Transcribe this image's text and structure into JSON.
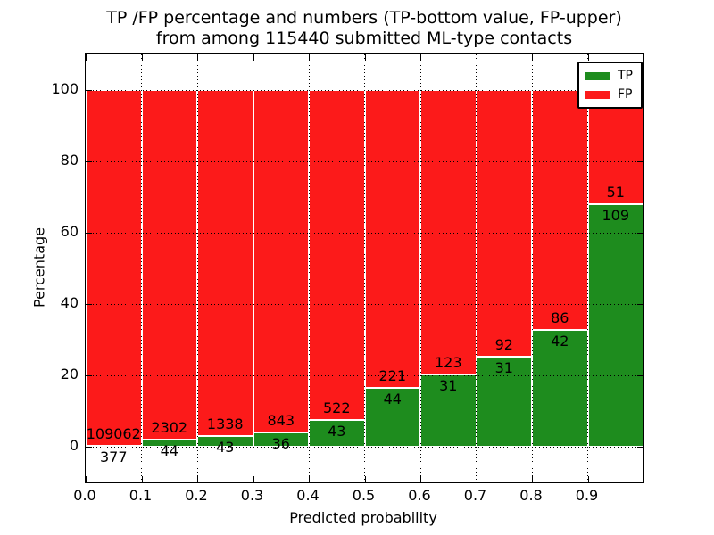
{
  "figure": {
    "title_line1": "TP /FP percentage and numbers (TP-bottom value, FP-upper)",
    "title_line2": "from among 115440 submitted ML-type contacts"
  },
  "axes": {
    "xlabel": "Predicted probability",
    "ylabel": "Percentage",
    "x_tick_labels": [
      "0.0",
      "0.1",
      "0.2",
      "0.3",
      "0.4",
      "0.5",
      "0.6",
      "0.7",
      "0.8",
      "0.9"
    ],
    "y_tick_labels": [
      "0",
      "20",
      "40",
      "60",
      "80",
      "100"
    ],
    "y_tick_values": [
      0,
      20,
      40,
      60,
      80,
      100
    ]
  },
  "legend": {
    "entries": [
      {
        "label": "TP",
        "color": "#1e8c1e"
      },
      {
        "label": "FP",
        "color": "#fc1a1a"
      }
    ]
  },
  "colors": {
    "tp_green": "#1e8c1e",
    "fp_red": "#fc1a1a",
    "grid": "#000000",
    "bar_edge": "#ffffff",
    "background": "#ffffff"
  },
  "chart_data": {
    "type": "bar",
    "stacked": true,
    "normalized": "percent-of-bin",
    "title": "TP /FP percentage and numbers (TP-bottom value, FP-upper)\nfrom among 115440 submitted ML-type contacts",
    "xlabel": "Predicted probability",
    "ylabel": "Percentage",
    "xlim": [
      0.0,
      1.0
    ],
    "ylim": [
      -10,
      110
    ],
    "grid": "dotted",
    "legend_position": "upper-right",
    "total_contacts": 115440,
    "bin_width": 0.1,
    "bin_starts": [
      0.0,
      0.1,
      0.2,
      0.3,
      0.4,
      0.5,
      0.6,
      0.7,
      0.8,
      0.9
    ],
    "series": [
      {
        "name": "TP",
        "color": "#1e8c1e",
        "counts": [
          377,
          44,
          43,
          36,
          43,
          44,
          31,
          31,
          42,
          109
        ]
      },
      {
        "name": "FP",
        "color": "#fc1a1a",
        "counts": [
          109062,
          2302,
          1338,
          843,
          522,
          221,
          123,
          92,
          86,
          51
        ]
      }
    ],
    "bar_value_labels": {
      "fp_above_boundary": [
        109062,
        2302,
        1338,
        843,
        522,
        221,
        123,
        92,
        86,
        51
      ],
      "tp_below_boundary": [
        377,
        44,
        43,
        36,
        43,
        44,
        31,
        31,
        42,
        109
      ]
    }
  }
}
